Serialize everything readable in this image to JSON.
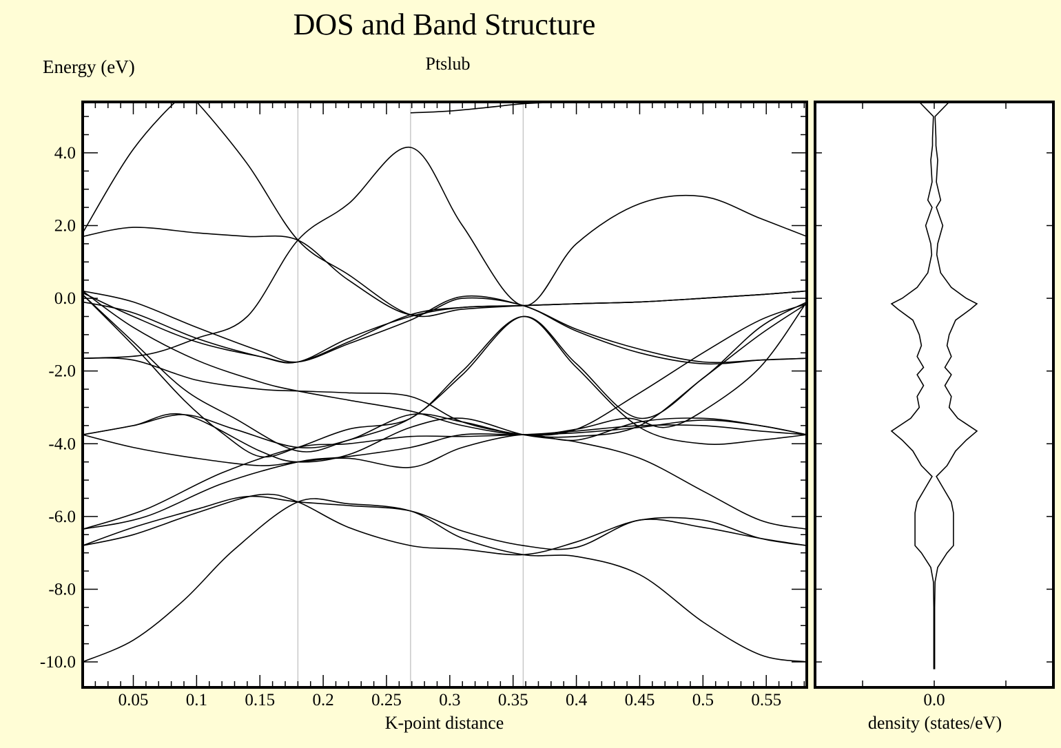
{
  "title": "DOS and Band Structure",
  "subtitle": "Ptslub",
  "chart_data": [
    {
      "type": "line",
      "ylabel": "Energy (eV)",
      "xlabel": "K-point distance",
      "xlim": [
        0.01,
        0.582
      ],
      "ylim": [
        -10.7,
        5.4
      ],
      "xticks": [
        "0.05",
        "0.1",
        "0.15",
        "0.2",
        "0.25",
        "0.3",
        "0.35",
        "0.4",
        "0.45",
        "0.5",
        "0.55"
      ],
      "yticks": [
        "4.0",
        "2.0",
        "0.0",
        "-2.0",
        "-4.0",
        "-6.0",
        "-8.0",
        "-10.0"
      ],
      "high_symmetry_x": [
        0.18,
        0.269,
        0.358
      ],
      "grid": false,
      "line_color": "#000000",
      "series": [
        {
          "x": [
            0.01,
            0.05,
            0.09,
            0.13,
            0.18,
            0.22,
            0.269,
            0.31,
            0.358,
            0.4,
            0.45,
            0.5,
            0.545,
            0.582
          ],
          "y": [
            -10.0,
            -9.4,
            -8.3,
            -6.9,
            -5.6,
            -5.65,
            -5.85,
            -6.6,
            -7.05,
            -7.1,
            -7.6,
            -8.9,
            -9.8,
            -10.0
          ]
        },
        {
          "x": [
            0.01,
            0.05,
            0.1,
            0.15,
            0.18,
            0.22,
            0.269,
            0.31,
            0.358,
            0.4,
            0.45,
            0.5,
            0.545,
            0.582
          ],
          "y": [
            -6.8,
            -6.5,
            -5.9,
            -5.4,
            -5.6,
            -6.3,
            -6.8,
            -6.9,
            -7.05,
            -6.7,
            -6.1,
            -6.1,
            -6.6,
            -6.8
          ]
        },
        {
          "x": [
            0.01,
            0.05,
            0.1,
            0.14,
            0.18,
            0.22,
            0.269,
            0.31,
            0.358,
            0.4,
            0.45,
            0.5,
            0.545,
            0.582
          ],
          "y": [
            -6.8,
            -6.3,
            -5.8,
            -5.45,
            -5.6,
            -5.7,
            -5.85,
            -6.4,
            -6.8,
            -6.85,
            -6.1,
            -6.3,
            -6.6,
            -6.8
          ]
        },
        {
          "x": [
            0.01,
            0.06,
            0.12,
            0.18,
            0.22,
            0.269,
            0.31,
            0.358,
            0.4,
            0.45,
            0.5,
            0.545,
            0.582
          ],
          "y": [
            -6.35,
            -6.0,
            -5.1,
            -4.5,
            -4.35,
            -4.1,
            -3.75,
            -3.75,
            -3.65,
            -3.5,
            -3.5,
            -3.65,
            -3.75
          ]
        },
        {
          "x": [
            0.01,
            0.06,
            0.12,
            0.18,
            0.22,
            0.269,
            0.31,
            0.358,
            0.4,
            0.45,
            0.5,
            0.545,
            0.582
          ],
          "y": [
            -6.35,
            -5.8,
            -4.8,
            -4.1,
            -4.0,
            -3.8,
            -3.8,
            -3.75,
            -3.7,
            -3.55,
            -3.35,
            -3.5,
            -3.75
          ]
        },
        {
          "x": [
            0.01,
            0.05,
            0.09,
            0.15,
            0.18,
            0.22,
            0.269,
            0.31,
            0.358,
            0.4,
            0.45,
            0.5,
            0.545,
            0.582
          ],
          "y": [
            -3.75,
            -3.5,
            -3.2,
            -4.2,
            -4.5,
            -4.3,
            -3.55,
            -3.3,
            -3.75,
            -3.95,
            -4.4,
            -5.3,
            -6.1,
            -6.35
          ]
        },
        {
          "x": [
            0.01,
            0.05,
            0.1,
            0.15,
            0.18,
            0.22,
            0.269,
            0.31,
            0.358,
            0.4,
            0.45,
            0.5,
            0.545,
            0.582
          ],
          "y": [
            -3.75,
            -4.1,
            -4.4,
            -4.6,
            -4.5,
            -4.4,
            -4.65,
            -4.1,
            -3.75,
            -3.9,
            -3.4,
            -3.3,
            -3.5,
            -3.75
          ]
        },
        {
          "x": [
            0.01,
            0.05,
            0.09,
            0.13,
            0.18,
            0.22,
            0.269,
            0.31,
            0.358,
            0.4,
            0.44,
            0.47,
            0.5,
            0.545,
            0.582
          ],
          "y": [
            -3.75,
            -3.5,
            -3.2,
            -3.6,
            -4.1,
            -3.9,
            -3.2,
            -3.4,
            -3.75,
            -3.6,
            -3.3,
            -3.55,
            -3.1,
            -1.9,
            -0.1
          ]
        },
        {
          "x": [
            0.01,
            0.05,
            0.09,
            0.12,
            0.15,
            0.18,
            0.22,
            0.269,
            0.31,
            0.358,
            0.4,
            0.45,
            0.5,
            0.545,
            0.582
          ],
          "y": [
            0.1,
            -1.3,
            -2.8,
            -3.7,
            -4.35,
            -4.1,
            -3.6,
            -3.3,
            -2.0,
            -0.5,
            -1.9,
            -3.55,
            -4.0,
            -3.9,
            -3.75
          ]
        },
        {
          "x": [
            0.01,
            0.05,
            0.09,
            0.13,
            0.18,
            0.22,
            0.269,
            0.31,
            0.358,
            0.4,
            0.45,
            0.5,
            0.545,
            0.582
          ],
          "y": [
            0.1,
            -1.2,
            -2.5,
            -3.3,
            -4.2,
            -3.9,
            -3.3,
            -2.1,
            -0.5,
            -1.8,
            -3.3,
            -2.2,
            -0.8,
            -0.1
          ]
        },
        {
          "x": [
            0.01,
            0.05,
            0.1,
            0.15,
            0.18,
            0.22,
            0.269,
            0.31,
            0.358,
            0.4,
            0.45,
            0.5,
            0.545,
            0.582
          ],
          "y": [
            -1.65,
            -1.7,
            -2.25,
            -2.5,
            -2.55,
            -2.6,
            -2.7,
            -3.4,
            -3.75,
            -3.8,
            -3.5,
            -2.2,
            -1.0,
            -0.15
          ]
        },
        {
          "x": [
            0.01,
            0.05,
            0.1,
            0.15,
            0.18,
            0.22,
            0.269,
            0.31,
            0.358,
            0.4,
            0.45,
            0.5,
            0.545,
            0.582
          ],
          "y": [
            0.2,
            -0.8,
            -1.7,
            -2.3,
            -2.55,
            -2.8,
            -3.1,
            -3.5,
            -3.75,
            -3.6,
            -2.6,
            -1.5,
            -0.6,
            -0.15
          ]
        },
        {
          "x": [
            0.01,
            0.06,
            0.1,
            0.14,
            0.18,
            0.22,
            0.269,
            0.31,
            0.358,
            0.4,
            0.45,
            0.5,
            0.545,
            0.582
          ],
          "y": [
            -1.65,
            -1.55,
            -1.1,
            -0.5,
            1.6,
            2.6,
            4.15,
            2.0,
            -0.2,
            1.5,
            2.6,
            2.8,
            2.2,
            1.7
          ]
        },
        {
          "x": [
            0.01,
            0.05,
            0.09,
            0.1,
            0.14,
            0.18,
            0.22,
            0.269,
            0.31,
            0.358,
            0.4,
            0.45,
            0.5,
            0.545,
            0.582
          ],
          "y": [
            1.8,
            4.1,
            5.6,
            5.4,
            3.7,
            1.6,
            0.65,
            -0.45,
            -0.3,
            -0.2,
            -0.15,
            -0.1,
            0.0,
            0.1,
            0.2
          ]
        },
        {
          "x": [
            0.01,
            0.05,
            0.1,
            0.14,
            0.18,
            0.22,
            0.269,
            0.31,
            0.358,
            0.4,
            0.45,
            0.5,
            0.545,
            0.582
          ],
          "y": [
            1.7,
            1.95,
            1.8,
            1.7,
            1.6,
            0.5,
            -0.45,
            0.0,
            -0.2,
            -0.9,
            -1.5,
            -1.8,
            -1.7,
            -1.65
          ]
        },
        {
          "x": [
            0.01,
            0.05,
            0.1,
            0.15,
            0.18,
            0.22,
            0.269,
            0.31,
            0.358,
            0.4,
            0.45,
            0.5,
            0.545,
            0.582
          ],
          "y": [
            0.2,
            -0.1,
            -0.8,
            -1.45,
            -1.75,
            -1.25,
            -0.6,
            0.05,
            -0.2,
            -0.85,
            -1.4,
            -1.75,
            -1.7,
            -1.65
          ]
        },
        {
          "x": [
            0.01,
            0.05,
            0.1,
            0.15,
            0.18,
            0.22,
            0.269,
            0.31,
            0.358,
            0.4,
            0.45,
            0.5,
            0.545,
            0.582
          ],
          "y": [
            -0.1,
            -0.4,
            -1.1,
            -1.6,
            -1.75,
            -1.1,
            -0.5,
            -0.25,
            -0.2,
            -0.15,
            -0.1,
            0.0,
            0.1,
            0.2
          ]
        },
        {
          "x": [
            0.01,
            0.05,
            0.1,
            0.15,
            0.18,
            0.22,
            0.269,
            0.31,
            0.358,
            0.4,
            0.45,
            0.5,
            0.545,
            0.582
          ],
          "y": [
            0.15,
            -0.5,
            -1.2,
            -1.6,
            -1.75,
            -1.2,
            -0.45,
            -0.25,
            -0.2,
            -0.15,
            -0.1,
            0.0,
            0.1,
            0.2
          ]
        },
        {
          "x": [
            0.269,
            0.3,
            0.33,
            0.358,
            0.39
          ],
          "y": [
            5.1,
            5.15,
            5.25,
            5.35,
            5.4
          ]
        }
      ]
    },
    {
      "type": "area",
      "xlabel": "density (states/eV)",
      "xticks": [
        "0.0"
      ],
      "ylim": [
        -10.7,
        5.4
      ],
      "y": [
        5.4,
        5.0,
        4.4,
        4.2,
        3.8,
        3.2,
        2.7,
        2.5,
        2.0,
        1.5,
        1.2,
        0.7,
        0.3,
        0.0,
        -0.15,
        -0.3,
        -0.6,
        -1.0,
        -1.3,
        -1.6,
        -1.9,
        -2.1,
        -2.4,
        -2.7,
        -3.0,
        -3.3,
        -3.65,
        -3.9,
        -4.2,
        -4.6,
        -4.9,
        -5.2,
        -5.6,
        -5.9,
        -6.4,
        -6.8,
        -7.0,
        -7.4,
        -7.8,
        -8.5,
        -9.5,
        -10.2
      ],
      "values": [
        0.35,
        0.02,
        0.04,
        0.04,
        0.08,
        0.05,
        0.15,
        0.05,
        0.2,
        0.08,
        0.06,
        0.15,
        0.4,
        0.75,
        1.0,
        0.85,
        0.5,
        0.35,
        0.3,
        0.4,
        0.25,
        0.4,
        0.25,
        0.4,
        0.35,
        0.55,
        1.0,
        0.75,
        0.5,
        0.3,
        0.05,
        0.2,
        0.4,
        0.45,
        0.45,
        0.45,
        0.3,
        0.08,
        0.02,
        0.01,
        0.01,
        0.01
      ]
    }
  ]
}
